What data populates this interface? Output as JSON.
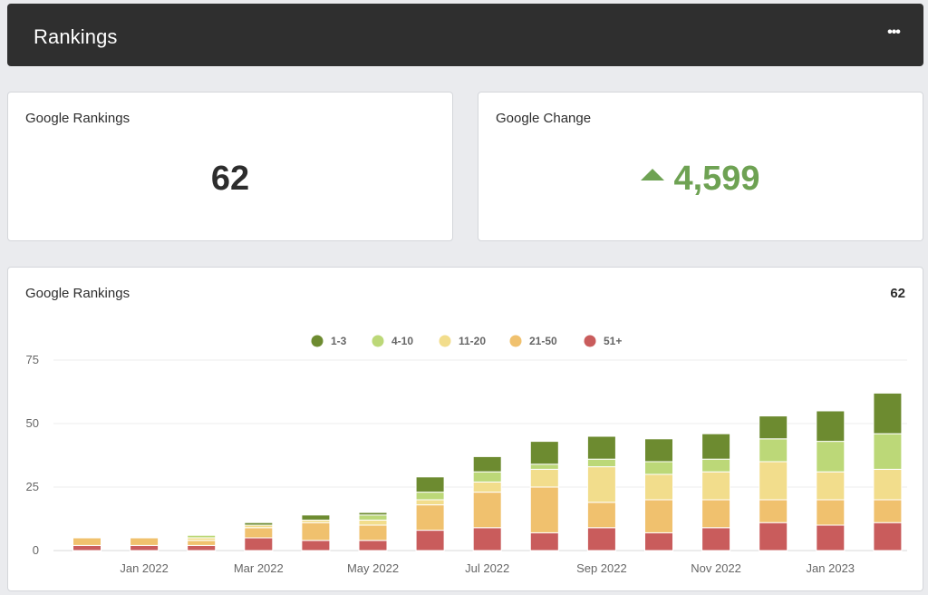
{
  "header": {
    "title": "Rankings",
    "menu_label": "•••"
  },
  "kpis": {
    "rankings": {
      "label": "Google Rankings",
      "value": "62"
    },
    "change": {
      "label": "Google Change",
      "value": "4,599",
      "direction": "up",
      "color": "#6ea253"
    }
  },
  "chart_card": {
    "title": "Google Rankings",
    "total": "62"
  },
  "chart_data": {
    "type": "bar",
    "stacked": true,
    "x": [
      "Dec 2021",
      "Jan 2022",
      "Feb 2022",
      "Mar 2022",
      "Apr 2022",
      "May 2022",
      "Jun 2022",
      "Jul 2022",
      "Aug 2022",
      "Sep 2022",
      "Oct 2022",
      "Nov 2022",
      "Dec 2022",
      "Jan 2023",
      "Feb 2023"
    ],
    "xtick_labels": [
      "Jan 2022",
      "Mar 2022",
      "May 2022",
      "Jul 2022",
      "Sep 2022",
      "Nov 2022",
      "Jan 2023"
    ],
    "series": [
      {
        "name": "51+",
        "color": "#c95c5c",
        "values": [
          2,
          2,
          2,
          5,
          4,
          4,
          8,
          9,
          7,
          9,
          7,
          9,
          11,
          10,
          11
        ]
      },
      {
        "name": "21-50",
        "color": "#f0c16e",
        "values": [
          3,
          3,
          2,
          4,
          7,
          6,
          10,
          14,
          18,
          10,
          13,
          11,
          9,
          10,
          9
        ]
      },
      {
        "name": "11-20",
        "color": "#f2dd8c",
        "values": [
          0,
          0,
          1,
          1,
          1,
          2,
          2,
          4,
          7,
          14,
          10,
          11,
          15,
          11,
          12
        ]
      },
      {
        "name": "4-10",
        "color": "#bcd878",
        "values": [
          0,
          0,
          1,
          0,
          0,
          2,
          3,
          4,
          2,
          3,
          5,
          5,
          9,
          12,
          14
        ]
      },
      {
        "name": "1-3",
        "color": "#6d8b30",
        "values": [
          0,
          0,
          0,
          1,
          2,
          1,
          6,
          6,
          9,
          9,
          9,
          10,
          9,
          12,
          16
        ]
      }
    ],
    "legend_order": [
      "1-3",
      "4-10",
      "11-20",
      "21-50",
      "51+"
    ],
    "yticks": [
      0,
      25,
      50,
      75
    ],
    "ylim": [
      0,
      75
    ],
    "grid": true,
    "legend_position": "top-center"
  }
}
